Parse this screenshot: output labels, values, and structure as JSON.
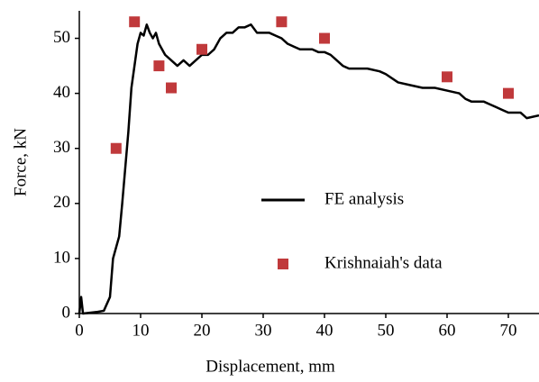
{
  "chart_data": {
    "type": "line",
    "xlabel": "Displacement, mm",
    "ylabel": "Force, kN",
    "xlim": [
      0,
      75
    ],
    "ylim": [
      0,
      55
    ],
    "xticks": [
      0,
      10,
      20,
      30,
      40,
      50,
      60,
      70
    ],
    "yticks": [
      0,
      10,
      20,
      30,
      40,
      50
    ],
    "grid": false,
    "legend": "center-right",
    "series": [
      {
        "name": "FE analysis",
        "type": "line",
        "color": "#000000",
        "x": [
          0,
          0.3,
          0.6,
          3,
          4,
          5,
          5.5,
          6.5,
          7,
          8,
          8.5,
          9.5,
          10,
          10.5,
          11,
          11.5,
          12,
          12.5,
          13,
          14,
          15,
          16,
          17,
          18,
          19,
          20,
          21,
          22,
          23,
          24,
          25,
          26,
          27,
          28,
          29,
          30,
          31,
          32,
          33,
          34,
          35,
          36,
          37,
          38,
          39,
          40,
          41,
          42,
          43,
          44,
          45,
          47,
          49,
          50,
          52,
          54,
          56,
          58,
          60,
          62,
          63,
          64,
          66,
          67,
          68,
          69,
          70,
          72,
          73,
          75
        ],
        "values": [
          0,
          3,
          0,
          0.3,
          0.5,
          3,
          10,
          14,
          20,
          33,
          41,
          49,
          51,
          50.5,
          52.5,
          51,
          50,
          51,
          49,
          47,
          46,
          45,
          46,
          45,
          46,
          47,
          47,
          48,
          50,
          51,
          51,
          52,
          52,
          52.5,
          51,
          51,
          51,
          50.5,
          50,
          49,
          48.5,
          48,
          48,
          48,
          47.5,
          47.5,
          47,
          46,
          45,
          44.5,
          44.5,
          44.5,
          44,
          43.5,
          42,
          41.5,
          41,
          41,
          40.5,
          40,
          39,
          38.5,
          38.5,
          38,
          37.5,
          37,
          36.5,
          36.5,
          35.5,
          36
        ]
      },
      {
        "name": "Krishnaiah's data",
        "type": "scatter",
        "color": "#c0393b",
        "x": [
          6,
          9,
          13,
          15,
          20,
          33,
          40,
          60,
          70
        ],
        "values": [
          30,
          53,
          45,
          41,
          48,
          53,
          50,
          43,
          40
        ]
      }
    ]
  }
}
